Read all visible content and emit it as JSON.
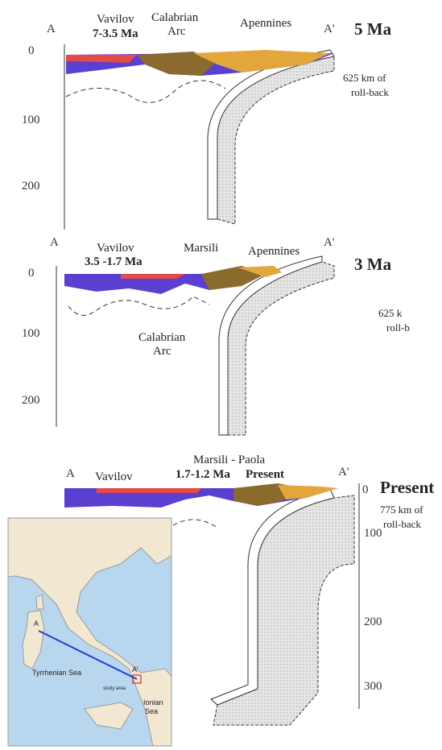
{
  "panels": [
    {
      "left": "A",
      "right": "A'",
      "labels": [
        "Vavilov",
        "7-3.5 Ma",
        "Calabrian",
        "Arc",
        "Apennines"
      ],
      "age": "5 Ma",
      "rollback": [
        "625 km of",
        "roll-back"
      ],
      "depth_ticks": [
        "0",
        "100",
        "200"
      ]
    },
    {
      "left": "A",
      "right": "A'",
      "labels": [
        "Vavilov",
        "3.5 -1.7 Ma",
        "Marsili",
        "Apennines",
        "Calabrian",
        "Arc"
      ],
      "age": "3 Ma",
      "rollback": [
        "625 k",
        "roll-b"
      ],
      "depth_ticks": [
        "0",
        "100",
        "200"
      ]
    },
    {
      "left": "A",
      "right": "A'",
      "labels": [
        "Vavilov",
        "Marsili - Paola",
        "1.7-1.2 Ma",
        "Present"
      ],
      "age": "Present",
      "rollback": [
        "775 km of",
        "roll-back"
      ],
      "depth_ticks": [
        "0",
        "100",
        "200",
        "300"
      ]
    }
  ],
  "map": {
    "point_a": "A",
    "point_b": "A'",
    "sea_1": "Tyrrhenian Sea",
    "sea_2a": "Ionian",
    "sea_2b": "Sea",
    "study": "study area"
  }
}
